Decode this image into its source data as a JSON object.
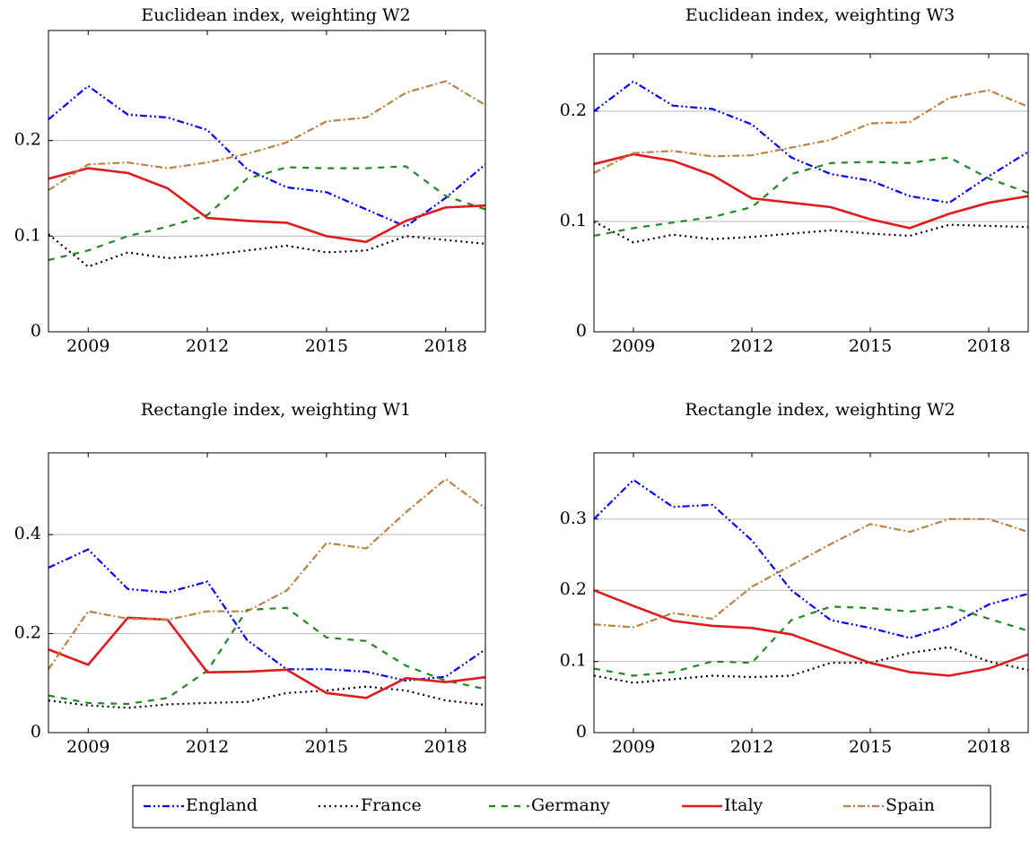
{
  "chart_data": [
    {
      "type": "line",
      "title": "Euclidean index, weighting W2",
      "x": [
        2008,
        2009,
        2010,
        2011,
        2012,
        2013,
        2014,
        2015,
        2016,
        2017,
        2018,
        2019
      ],
      "xlim": [
        2008,
        2019
      ],
      "xticks": [
        2009,
        2012,
        2015,
        2018
      ],
      "ylim": [
        0,
        0.315
      ],
      "yticks": [
        0,
        0.1,
        0.2
      ],
      "grid": true,
      "series": [
        {
          "values": [
            0.222,
            0.257,
            0.227,
            0.224,
            0.211,
            0.17,
            0.151,
            0.146,
            0.128,
            0.11,
            0.14,
            0.175
          ]
        },
        {
          "values": [
            0.102,
            0.068,
            0.083,
            0.077,
            0.08,
            0.085,
            0.09,
            0.083,
            0.085,
            0.1,
            0.096,
            0.092
          ]
        },
        {
          "values": [
            0.075,
            0.085,
            0.1,
            0.11,
            0.122,
            0.16,
            0.172,
            0.171,
            0.171,
            0.173,
            0.142,
            0.128
          ]
        },
        {
          "values": [
            0.16,
            0.171,
            0.166,
            0.15,
            0.119,
            0.116,
            0.114,
            0.1,
            0.094,
            0.116,
            0.13,
            0.132
          ]
        },
        {
          "values": [
            0.148,
            0.175,
            0.177,
            0.171,
            0.177,
            0.186,
            0.198,
            0.22,
            0.224,
            0.25,
            0.262,
            0.237
          ]
        }
      ]
    },
    {
      "type": "line",
      "title": "Euclidean index, weighting W3",
      "x": [
        2008,
        2009,
        2010,
        2011,
        2012,
        2013,
        2014,
        2015,
        2016,
        2017,
        2018,
        2019
      ],
      "xlim": [
        2008,
        2019
      ],
      "xticks": [
        2009,
        2012,
        2015,
        2018
      ],
      "ylim": [
        0,
        0.252
      ],
      "yticks": [
        0,
        0.1,
        0.2
      ],
      "grid": true,
      "series": [
        {
          "values": [
            0.2,
            0.227,
            0.205,
            0.202,
            0.188,
            0.158,
            0.143,
            0.137,
            0.123,
            0.117,
            0.141,
            0.163
          ]
        },
        {
          "values": [
            0.1,
            0.081,
            0.088,
            0.084,
            0.086,
            0.089,
            0.092,
            0.089,
            0.087,
            0.097,
            0.096,
            0.095
          ]
        },
        {
          "values": [
            0.087,
            0.094,
            0.099,
            0.104,
            0.113,
            0.143,
            0.153,
            0.154,
            0.153,
            0.158,
            0.139,
            0.126
          ]
        },
        {
          "values": [
            0.152,
            0.161,
            0.155,
            0.142,
            0.121,
            0.117,
            0.113,
            0.102,
            0.094,
            0.107,
            0.117,
            0.123
          ]
        },
        {
          "values": [
            0.144,
            0.162,
            0.164,
            0.159,
            0.16,
            0.167,
            0.174,
            0.189,
            0.19,
            0.212,
            0.219,
            0.204
          ]
        }
      ]
    },
    {
      "type": "line",
      "title": "Rectangle index, weighting W1",
      "x": [
        2008,
        2009,
        2010,
        2011,
        2012,
        2013,
        2014,
        2015,
        2016,
        2017,
        2018,
        2019
      ],
      "xlim": [
        2008,
        2019
      ],
      "xticks": [
        2009,
        2012,
        2015,
        2018
      ],
      "ylim": [
        0,
        0.565
      ],
      "yticks": [
        0,
        0.2,
        0.4
      ],
      "grid": true,
      "series": [
        {
          "values": [
            0.333,
            0.37,
            0.29,
            0.283,
            0.305,
            0.187,
            0.128,
            0.128,
            0.123,
            0.105,
            0.113,
            0.168
          ]
        },
        {
          "values": [
            0.065,
            0.055,
            0.05,
            0.057,
            0.06,
            0.062,
            0.08,
            0.085,
            0.093,
            0.085,
            0.065,
            0.056
          ]
        },
        {
          "values": [
            0.075,
            0.06,
            0.058,
            0.07,
            0.125,
            0.248,
            0.252,
            0.192,
            0.185,
            0.135,
            0.105,
            0.088
          ]
        },
        {
          "values": [
            0.168,
            0.137,
            0.232,
            0.228,
            0.122,
            0.123,
            0.127,
            0.08,
            0.07,
            0.11,
            0.102,
            0.112
          ]
        },
        {
          "values": [
            0.128,
            0.245,
            0.23,
            0.228,
            0.245,
            0.245,
            0.287,
            0.383,
            0.372,
            0.445,
            0.512,
            0.453
          ]
        }
      ]
    },
    {
      "type": "line",
      "title": "Rectangle index, weighting W2",
      "x": [
        2008,
        2009,
        2010,
        2011,
        2012,
        2013,
        2014,
        2015,
        2016,
        2017,
        2018,
        2019
      ],
      "xlim": [
        2008,
        2019
      ],
      "xticks": [
        2009,
        2012,
        2015,
        2018
      ],
      "ylim": [
        0,
        0.393
      ],
      "yticks": [
        0,
        0.1,
        0.2,
        0.3
      ],
      "grid": true,
      "series": [
        {
          "values": [
            0.3,
            0.355,
            0.317,
            0.32,
            0.27,
            0.2,
            0.158,
            0.147,
            0.133,
            0.15,
            0.18,
            0.195
          ]
        },
        {
          "values": [
            0.08,
            0.07,
            0.075,
            0.08,
            0.078,
            0.08,
            0.098,
            0.098,
            0.112,
            0.12,
            0.1,
            0.088
          ]
        },
        {
          "values": [
            0.09,
            0.08,
            0.085,
            0.1,
            0.098,
            0.158,
            0.177,
            0.175,
            0.17,
            0.177,
            0.16,
            0.143
          ]
        },
        {
          "values": [
            0.2,
            0.178,
            0.157,
            0.15,
            0.147,
            0.138,
            0.118,
            0.098,
            0.085,
            0.08,
            0.09,
            0.11
          ]
        },
        {
          "values": [
            0.152,
            0.148,
            0.168,
            0.16,
            0.205,
            0.235,
            0.265,
            0.293,
            0.282,
            0.3,
            0.3,
            0.282
          ]
        }
      ]
    }
  ],
  "legend": [
    {
      "name": "England",
      "color": "#0000ff",
      "style": "dash-dot-dot"
    },
    {
      "name": "France",
      "color": "#000000",
      "style": "dotted"
    },
    {
      "name": "Germany",
      "color": "#1f8a1f",
      "style": "dashed"
    },
    {
      "name": "Italy",
      "color": "#e31a1a",
      "style": "solid"
    },
    {
      "name": "Spain",
      "color": "#bf8040",
      "style": "dash-dot"
    }
  ]
}
